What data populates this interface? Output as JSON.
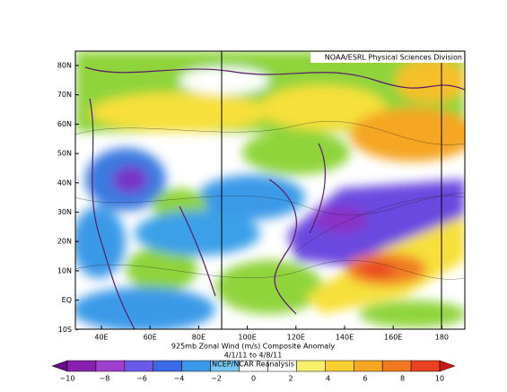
{
  "header": {
    "credit": "NOAA/ESRL Physical Sciences Division"
  },
  "map": {
    "lat_labels": [
      "80N",
      "70N",
      "60N",
      "50N",
      "40N",
      "30N",
      "20N",
      "10N",
      "EQ",
      "10S"
    ],
    "lon_labels": [
      "40E",
      "60E",
      "80E",
      "100E",
      "120E",
      "140E",
      "160E",
      "180"
    ]
  },
  "caption": {
    "title": "925mb Zonal Wind (m/s) Composite Anomaly",
    "dates": "4/1/11  to 4/8/11",
    "source": "NCEP/NCAR Reanalysis"
  },
  "colorbar": {
    "labels": [
      "−10",
      "−8",
      "−6",
      "−4",
      "−2",
      "0",
      "2",
      "4",
      "6",
      "8",
      "10"
    ]
  }
}
